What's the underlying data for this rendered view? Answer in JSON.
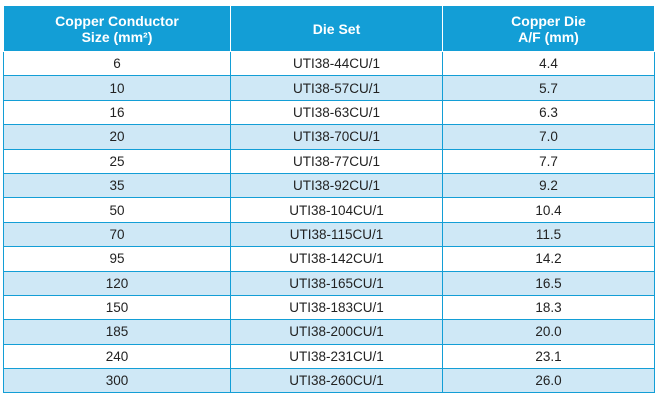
{
  "table": {
    "headers": [
      {
        "line1": "Copper Conductor",
        "line2": "Size (mm²)"
      },
      {
        "line1": "Die Set",
        "line2": ""
      },
      {
        "line1": "Copper Die",
        "line2": "A/F (mm)"
      }
    ],
    "rows": [
      [
        "6",
        "UTI38-44CU/1",
        "4.4"
      ],
      [
        "10",
        "UTI38-57CU/1",
        "5.7"
      ],
      [
        "16",
        "UTI38-63CU/1",
        "6.3"
      ],
      [
        "20",
        "UTI38-70CU/1",
        "7.0"
      ],
      [
        "25",
        "UTI38-77CU/1",
        "7.7"
      ],
      [
        "35",
        "UTI38-92CU/1",
        "9.2"
      ],
      [
        "50",
        "UTI38-104CU/1",
        "10.4"
      ],
      [
        "70",
        "UTI38-115CU/1",
        "11.5"
      ],
      [
        "95",
        "UTI38-142CU/1",
        "14.2"
      ],
      [
        "120",
        "UTI38-165CU/1",
        "16.5"
      ],
      [
        "150",
        "UTI38-183CU/1",
        "18.3"
      ],
      [
        "185",
        "UTI38-200CU/1",
        "20.0"
      ],
      [
        "240",
        "UTI38-231CU/1",
        "23.1"
      ],
      [
        "300",
        "UTI38-260CU/1",
        "26.0"
      ]
    ]
  },
  "colors": {
    "header_bg": "#139ed6",
    "alt_row_bg": "#cfe8f6",
    "border": "#139ed6"
  }
}
